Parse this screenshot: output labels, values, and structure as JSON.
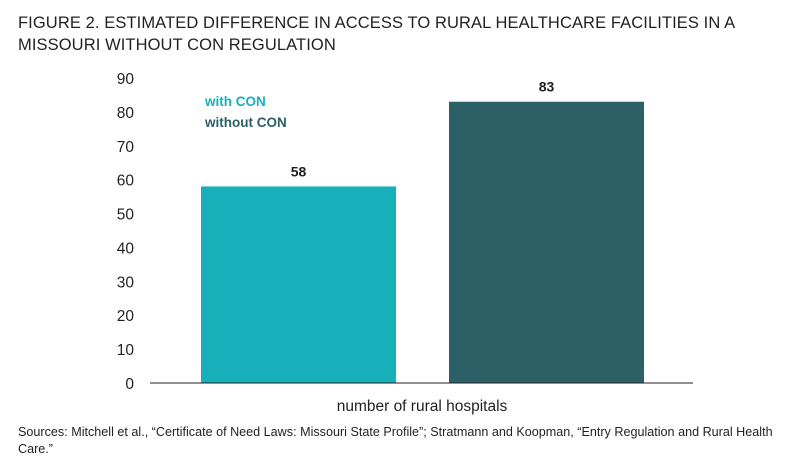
{
  "figure": {
    "title": "FIGURE 2. ESTIMATED DIFFERENCE IN ACCESS TO RURAL HEALTHCARE FACILITIES IN A MISSOURI WITHOUT CON REGULATION",
    "sources": "Sources: Mitchell et al., “Certificate of Need Laws: Missouri State Profile”; Stratmann and Koopman, “Entry Regulation and Rural Health Care.”"
  },
  "chart_data": {
    "type": "bar",
    "title": "FIGURE 2. ESTIMATED DIFFERENCE IN ACCESS TO RURAL HEALTHCARE FACILITIES IN A MISSOURI WITHOUT CON REGULATION",
    "categories": [
      "number of rural hospitals"
    ],
    "series": [
      {
        "name": "with CON",
        "values": [
          58
        ],
        "color": "#17b0ba"
      },
      {
        "name": "without CON",
        "values": [
          83
        ],
        "color": "#2b6166"
      }
    ],
    "xlabel": "number of rural hospitals",
    "ylabel": "",
    "ylim": [
      0,
      90
    ],
    "yticks": [
      0,
      10,
      20,
      30,
      40,
      50,
      60,
      70,
      80,
      90
    ],
    "data_labels": [
      "58",
      "83"
    ],
    "legend_position": "top-left",
    "grid": false
  }
}
